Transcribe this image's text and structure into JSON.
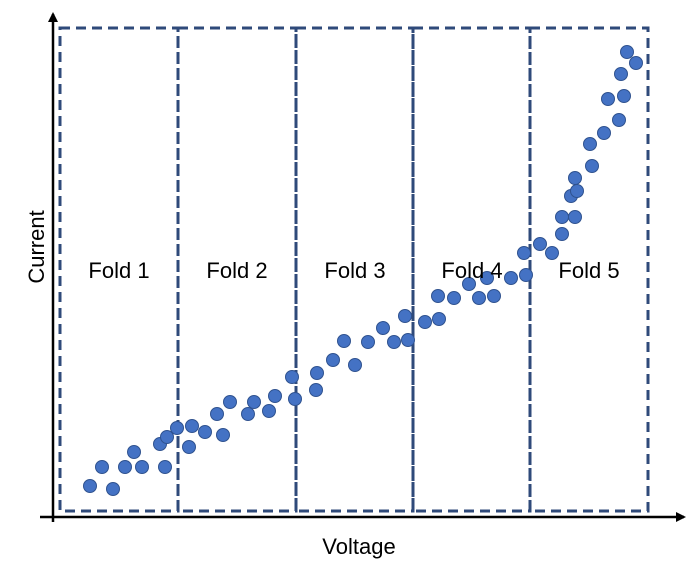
{
  "axes": {
    "x_label": "Voltage",
    "y_label": "Current"
  },
  "folds": [
    {
      "label": "Fold 1"
    },
    {
      "label": "Fold 2"
    },
    {
      "label": "Fold 3"
    },
    {
      "label": "Fold 4"
    },
    {
      "label": "Fold 5"
    }
  ],
  "colors": {
    "point_fill": "#4472c4",
    "point_stroke": "#2f528f",
    "fold_border": "#2f4a7a",
    "axis": "#000000"
  },
  "chart_data": {
    "type": "scatter",
    "xlabel": "Voltage",
    "ylabel": "Current",
    "grid": false,
    "partition": "5 vertical folds (Fold 1 to Fold 5)",
    "points": [
      [
        90,
        486
      ],
      [
        102,
        467
      ],
      [
        113,
        489
      ],
      [
        125,
        467
      ],
      [
        134,
        452
      ],
      [
        142,
        467
      ],
      [
        160,
        444
      ],
      [
        165,
        467
      ],
      [
        167,
        437
      ],
      [
        177,
        428
      ],
      [
        189,
        447
      ],
      [
        192,
        426
      ],
      [
        205,
        432
      ],
      [
        217,
        414
      ],
      [
        223,
        435
      ],
      [
        230,
        402
      ],
      [
        248,
        414
      ],
      [
        254,
        402
      ],
      [
        269,
        411
      ],
      [
        275,
        396
      ],
      [
        292,
        377
      ],
      [
        295,
        399
      ],
      [
        316,
        390
      ],
      [
        317,
        373
      ],
      [
        333,
        360
      ],
      [
        344,
        341
      ],
      [
        355,
        365
      ],
      [
        368,
        342
      ],
      [
        383,
        328
      ],
      [
        394,
        342
      ],
      [
        405,
        316
      ],
      [
        408,
        340
      ],
      [
        425,
        322
      ],
      [
        438,
        296
      ],
      [
        439,
        319
      ],
      [
        454,
        298
      ],
      [
        469,
        284
      ],
      [
        479,
        298
      ],
      [
        487,
        278
      ],
      [
        494,
        296
      ],
      [
        511,
        278
      ],
      [
        524,
        253
      ],
      [
        526,
        275
      ],
      [
        540,
        244
      ],
      [
        552,
        253
      ],
      [
        562,
        234
      ],
      [
        562,
        217
      ],
      [
        571,
        196
      ],
      [
        575,
        217
      ],
      [
        575,
        178
      ],
      [
        577,
        191
      ],
      [
        590,
        144
      ],
      [
        592,
        166
      ],
      [
        604,
        133
      ],
      [
        608,
        99
      ],
      [
        619,
        120
      ],
      [
        621,
        74
      ],
      [
        624,
        96
      ],
      [
        627,
        52
      ],
      [
        636,
        63
      ]
    ]
  }
}
